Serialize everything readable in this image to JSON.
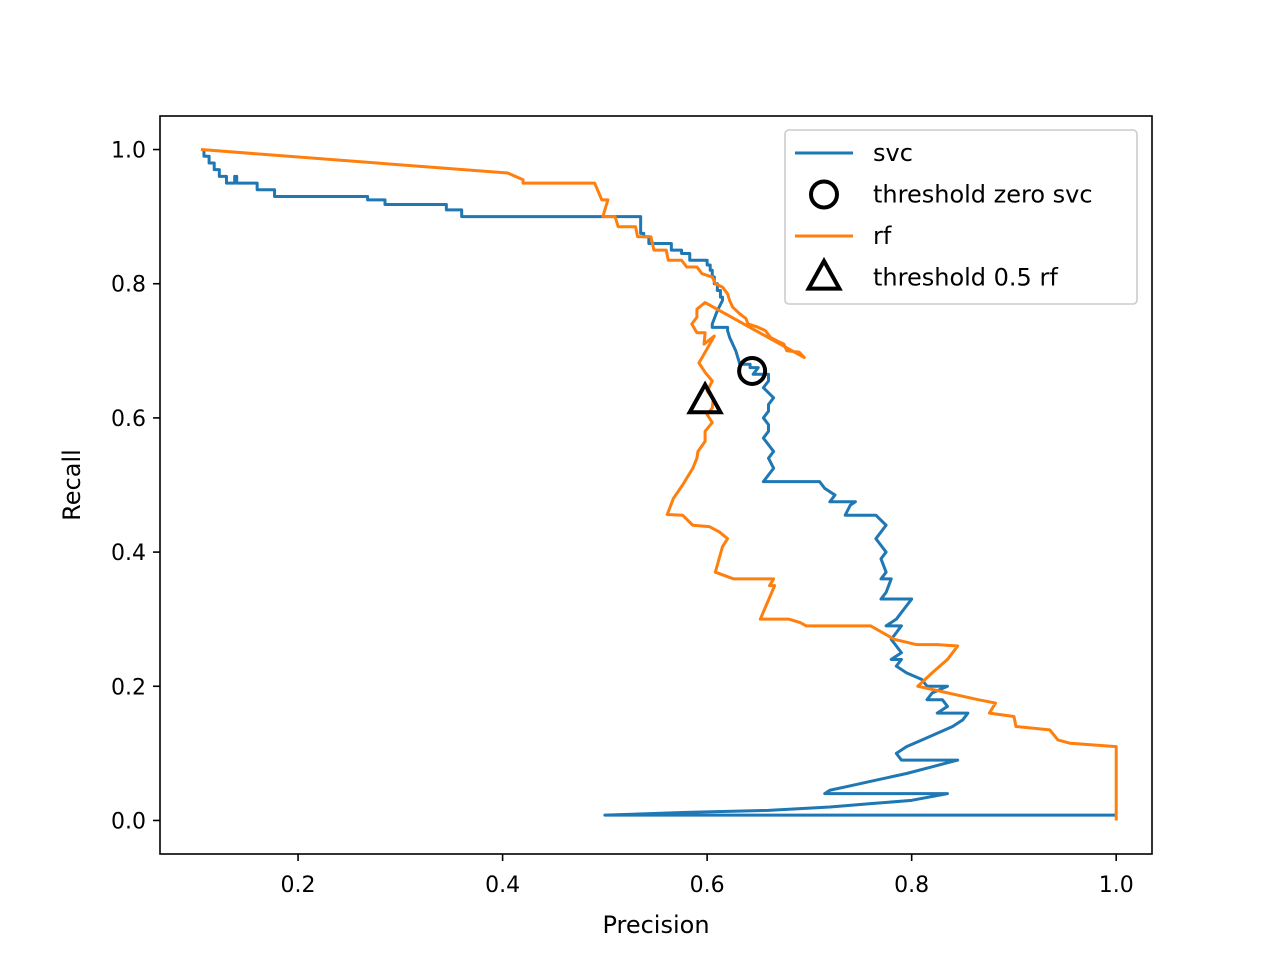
{
  "chart_data": {
    "type": "line",
    "title": "",
    "xlabel": "Precision",
    "ylabel": "Recall",
    "xlim": [
      0.065,
      1.035
    ],
    "ylim": [
      -0.05,
      1.05
    ],
    "xticks": [
      {
        "value": 0.2,
        "label": "0.2"
      },
      {
        "value": 0.4,
        "label": "0.4"
      },
      {
        "value": 0.6,
        "label": "0.6"
      },
      {
        "value": 0.8,
        "label": "0.8"
      },
      {
        "value": 1.0,
        "label": "1.0"
      }
    ],
    "yticks": [
      {
        "value": 0.0,
        "label": "0.0"
      },
      {
        "value": 0.2,
        "label": "0.2"
      },
      {
        "value": 0.4,
        "label": "0.4"
      },
      {
        "value": 0.6,
        "label": "0.6"
      },
      {
        "value": 0.8,
        "label": "0.8"
      },
      {
        "value": 1.0,
        "label": "1.0"
      }
    ],
    "grid": false,
    "legend_position": "top-right",
    "series": [
      {
        "name": "svc",
        "kind": "line",
        "color": "#1f77b4",
        "points": [
          [
            0.108,
            1.0
          ],
          [
            0.108,
            0.99
          ],
          [
            0.113,
            0.99
          ],
          [
            0.113,
            0.98
          ],
          [
            0.118,
            0.98
          ],
          [
            0.118,
            0.97
          ],
          [
            0.123,
            0.97
          ],
          [
            0.123,
            0.96
          ],
          [
            0.13,
            0.96
          ],
          [
            0.13,
            0.95
          ],
          [
            0.138,
            0.95
          ],
          [
            0.138,
            0.96
          ],
          [
            0.14,
            0.96
          ],
          [
            0.14,
            0.95
          ],
          [
            0.16,
            0.95
          ],
          [
            0.16,
            0.94
          ],
          [
            0.177,
            0.94
          ],
          [
            0.177,
            0.93
          ],
          [
            0.268,
            0.93
          ],
          [
            0.268,
            0.925
          ],
          [
            0.285,
            0.925
          ],
          [
            0.285,
            0.918
          ],
          [
            0.345,
            0.918
          ],
          [
            0.345,
            0.91
          ],
          [
            0.36,
            0.91
          ],
          [
            0.36,
            0.9
          ],
          [
            0.535,
            0.9
          ],
          [
            0.535,
            0.875
          ],
          [
            0.538,
            0.875
          ],
          [
            0.538,
            0.87
          ],
          [
            0.543,
            0.87
          ],
          [
            0.543,
            0.86
          ],
          [
            0.565,
            0.86
          ],
          [
            0.565,
            0.85
          ],
          [
            0.575,
            0.85
          ],
          [
            0.575,
            0.845
          ],
          [
            0.583,
            0.845
          ],
          [
            0.583,
            0.835
          ],
          [
            0.6,
            0.835
          ],
          [
            0.6,
            0.828
          ],
          [
            0.603,
            0.828
          ],
          [
            0.603,
            0.82
          ],
          [
            0.605,
            0.82
          ],
          [
            0.605,
            0.81
          ],
          [
            0.607,
            0.81
          ],
          [
            0.607,
            0.8
          ],
          [
            0.61,
            0.8
          ],
          [
            0.61,
            0.79
          ],
          [
            0.613,
            0.79
          ],
          [
            0.613,
            0.78
          ],
          [
            0.615,
            0.78
          ],
          [
            0.615,
            0.775
          ],
          [
            0.61,
            0.76
          ],
          [
            0.605,
            0.74
          ],
          [
            0.605,
            0.735
          ],
          [
            0.62,
            0.735
          ],
          [
            0.62,
            0.73
          ],
          [
            0.622,
            0.72
          ],
          [
            0.625,
            0.71
          ],
          [
            0.628,
            0.7
          ],
          [
            0.63,
            0.69
          ],
          [
            0.632,
            0.68
          ],
          [
            0.642,
            0.68
          ],
          [
            0.642,
            0.675
          ],
          [
            0.65,
            0.675
          ],
          [
            0.645,
            0.665
          ],
          [
            0.66,
            0.665
          ],
          [
            0.66,
            0.655
          ],
          [
            0.655,
            0.645
          ],
          [
            0.665,
            0.63
          ],
          [
            0.66,
            0.62
          ],
          [
            0.66,
            0.61
          ],
          [
            0.655,
            0.6
          ],
          [
            0.66,
            0.59
          ],
          [
            0.66,
            0.58
          ],
          [
            0.655,
            0.57
          ],
          [
            0.66,
            0.56
          ],
          [
            0.665,
            0.55
          ],
          [
            0.66,
            0.54
          ],
          [
            0.665,
            0.525
          ],
          [
            0.655,
            0.505
          ],
          [
            0.71,
            0.505
          ],
          [
            0.715,
            0.495
          ],
          [
            0.725,
            0.485
          ],
          [
            0.72,
            0.475
          ],
          [
            0.745,
            0.475
          ],
          [
            0.74,
            0.47
          ],
          [
            0.735,
            0.455
          ],
          [
            0.765,
            0.455
          ],
          [
            0.775,
            0.44
          ],
          [
            0.77,
            0.43
          ],
          [
            0.765,
            0.42
          ],
          [
            0.77,
            0.41
          ],
          [
            0.775,
            0.4
          ],
          [
            0.77,
            0.39
          ],
          [
            0.775,
            0.37
          ],
          [
            0.77,
            0.36
          ],
          [
            0.78,
            0.36
          ],
          [
            0.775,
            0.34
          ],
          [
            0.77,
            0.33
          ],
          [
            0.785,
            0.33
          ],
          [
            0.8,
            0.33
          ],
          [
            0.795,
            0.32
          ],
          [
            0.79,
            0.31
          ],
          [
            0.785,
            0.3
          ],
          [
            0.775,
            0.29
          ],
          [
            0.79,
            0.29
          ],
          [
            0.785,
            0.28
          ],
          [
            0.78,
            0.27
          ],
          [
            0.785,
            0.26
          ],
          [
            0.79,
            0.25
          ],
          [
            0.78,
            0.24
          ],
          [
            0.79,
            0.24
          ],
          [
            0.785,
            0.23
          ],
          [
            0.795,
            0.22
          ],
          [
            0.81,
            0.21
          ],
          [
            0.815,
            0.2
          ],
          [
            0.835,
            0.2
          ],
          [
            0.82,
            0.19
          ],
          [
            0.815,
            0.18
          ],
          [
            0.83,
            0.18
          ],
          [
            0.835,
            0.17
          ],
          [
            0.825,
            0.16
          ],
          [
            0.855,
            0.16
          ],
          [
            0.85,
            0.15
          ],
          [
            0.84,
            0.14
          ],
          [
            0.825,
            0.13
          ],
          [
            0.81,
            0.12
          ],
          [
            0.795,
            0.11
          ],
          [
            0.785,
            0.1
          ],
          [
            0.79,
            0.09
          ],
          [
            0.845,
            0.09
          ],
          [
            0.82,
            0.08
          ],
          [
            0.795,
            0.07
          ],
          [
            0.765,
            0.06
          ],
          [
            0.735,
            0.05
          ],
          [
            0.72,
            0.045
          ],
          [
            0.715,
            0.04
          ],
          [
            0.835,
            0.04
          ],
          [
            0.8,
            0.03
          ],
          [
            0.76,
            0.025
          ],
          [
            0.72,
            0.02
          ],
          [
            0.66,
            0.015
          ],
          [
            0.58,
            0.012
          ],
          [
            0.5,
            0.008
          ],
          [
            1.0,
            0.008
          ]
        ]
      },
      {
        "name": "threshold zero svc",
        "kind": "marker",
        "marker": "circle",
        "color": "#000000",
        "points": [
          [
            0.644,
            0.67
          ]
        ]
      },
      {
        "name": "rf",
        "kind": "line",
        "color": "#ff7f0e",
        "points": [
          [
            0.105,
            1.0
          ],
          [
            0.405,
            0.965
          ],
          [
            0.42,
            0.955
          ],
          [
            0.42,
            0.95
          ],
          [
            0.49,
            0.95
          ],
          [
            0.497,
            0.925
          ],
          [
            0.503,
            0.925
          ],
          [
            0.498,
            0.9
          ],
          [
            0.51,
            0.9
          ],
          [
            0.513,
            0.885
          ],
          [
            0.53,
            0.885
          ],
          [
            0.532,
            0.87
          ],
          [
            0.545,
            0.87
          ],
          [
            0.548,
            0.85
          ],
          [
            0.56,
            0.85
          ],
          [
            0.562,
            0.835
          ],
          [
            0.575,
            0.835
          ],
          [
            0.58,
            0.825
          ],
          [
            0.59,
            0.825
          ],
          [
            0.595,
            0.815
          ],
          [
            0.605,
            0.81
          ],
          [
            0.608,
            0.8
          ],
          [
            0.615,
            0.795
          ],
          [
            0.62,
            0.785
          ],
          [
            0.622,
            0.775
          ],
          [
            0.625,
            0.765
          ],
          [
            0.632,
            0.755
          ],
          [
            0.638,
            0.748
          ],
          [
            0.64,
            0.74
          ],
          [
            0.65,
            0.735
          ],
          [
            0.657,
            0.73
          ],
          [
            0.662,
            0.72
          ],
          [
            0.668,
            0.715
          ],
          [
            0.675,
            0.71
          ],
          [
            0.678,
            0.7
          ],
          [
            0.69,
            0.698
          ],
          [
            0.695,
            0.69
          ],
          [
            0.598,
            0.772
          ],
          [
            0.59,
            0.762
          ],
          [
            0.59,
            0.75
          ],
          [
            0.585,
            0.74
          ],
          [
            0.59,
            0.727
          ],
          [
            0.598,
            0.727
          ],
          [
            0.597,
            0.71
          ],
          [
            0.607,
            0.722
          ],
          [
            0.597,
            0.695
          ],
          [
            0.592,
            0.682
          ],
          [
            0.598,
            0.668
          ],
          [
            0.605,
            0.655
          ],
          [
            0.6,
            0.64
          ],
          [
            0.606,
            0.628
          ],
          [
            0.605,
            0.615
          ],
          [
            0.6,
            0.605
          ],
          [
            0.605,
            0.593
          ],
          [
            0.598,
            0.58
          ],
          [
            0.598,
            0.565
          ],
          [
            0.591,
            0.55
          ],
          [
            0.59,
            0.54
          ],
          [
            0.586,
            0.525
          ],
          [
            0.582,
            0.515
          ],
          [
            0.576,
            0.5
          ],
          [
            0.567,
            0.48
          ],
          [
            0.561,
            0.456
          ],
          [
            0.576,
            0.455
          ],
          [
            0.586,
            0.44
          ],
          [
            0.602,
            0.438
          ],
          [
            0.612,
            0.43
          ],
          [
            0.62,
            0.42
          ],
          [
            0.615,
            0.408
          ],
          [
            0.608,
            0.37
          ],
          [
            0.626,
            0.36
          ],
          [
            0.665,
            0.36
          ],
          [
            0.661,
            0.35
          ],
          [
            0.666,
            0.35
          ],
          [
            0.652,
            0.3
          ],
          [
            0.68,
            0.3
          ],
          [
            0.691,
            0.295
          ],
          [
            0.697,
            0.29
          ],
          [
            0.725,
            0.29
          ],
          [
            0.76,
            0.29
          ],
          [
            0.783,
            0.27
          ],
          [
            0.805,
            0.262
          ],
          [
            0.825,
            0.262
          ],
          [
            0.845,
            0.26
          ],
          [
            0.835,
            0.24
          ],
          [
            0.82,
            0.22
          ],
          [
            0.806,
            0.2
          ],
          [
            0.865,
            0.18
          ],
          [
            0.882,
            0.175
          ],
          [
            0.876,
            0.16
          ],
          [
            0.9,
            0.155
          ],
          [
            0.902,
            0.14
          ],
          [
            0.935,
            0.135
          ],
          [
            0.943,
            0.12
          ],
          [
            0.955,
            0.115
          ],
          [
            1.0,
            0.11
          ],
          [
            1.0,
            0.0
          ]
        ]
      },
      {
        "name": "threshold 0.5 rf",
        "kind": "marker",
        "marker": "triangle",
        "color": "#000000",
        "points": [
          [
            0.598,
            0.625
          ]
        ]
      }
    ],
    "legend": [
      {
        "name": "svc",
        "symbol": "line",
        "color": "#1f77b4"
      },
      {
        "name": "threshold zero svc",
        "symbol": "circle",
        "color": "#000000"
      },
      {
        "name": "rf",
        "symbol": "line",
        "color": "#ff7f0e"
      },
      {
        "name": "threshold 0.5 rf",
        "symbol": "triangle",
        "color": "#000000"
      }
    ]
  }
}
